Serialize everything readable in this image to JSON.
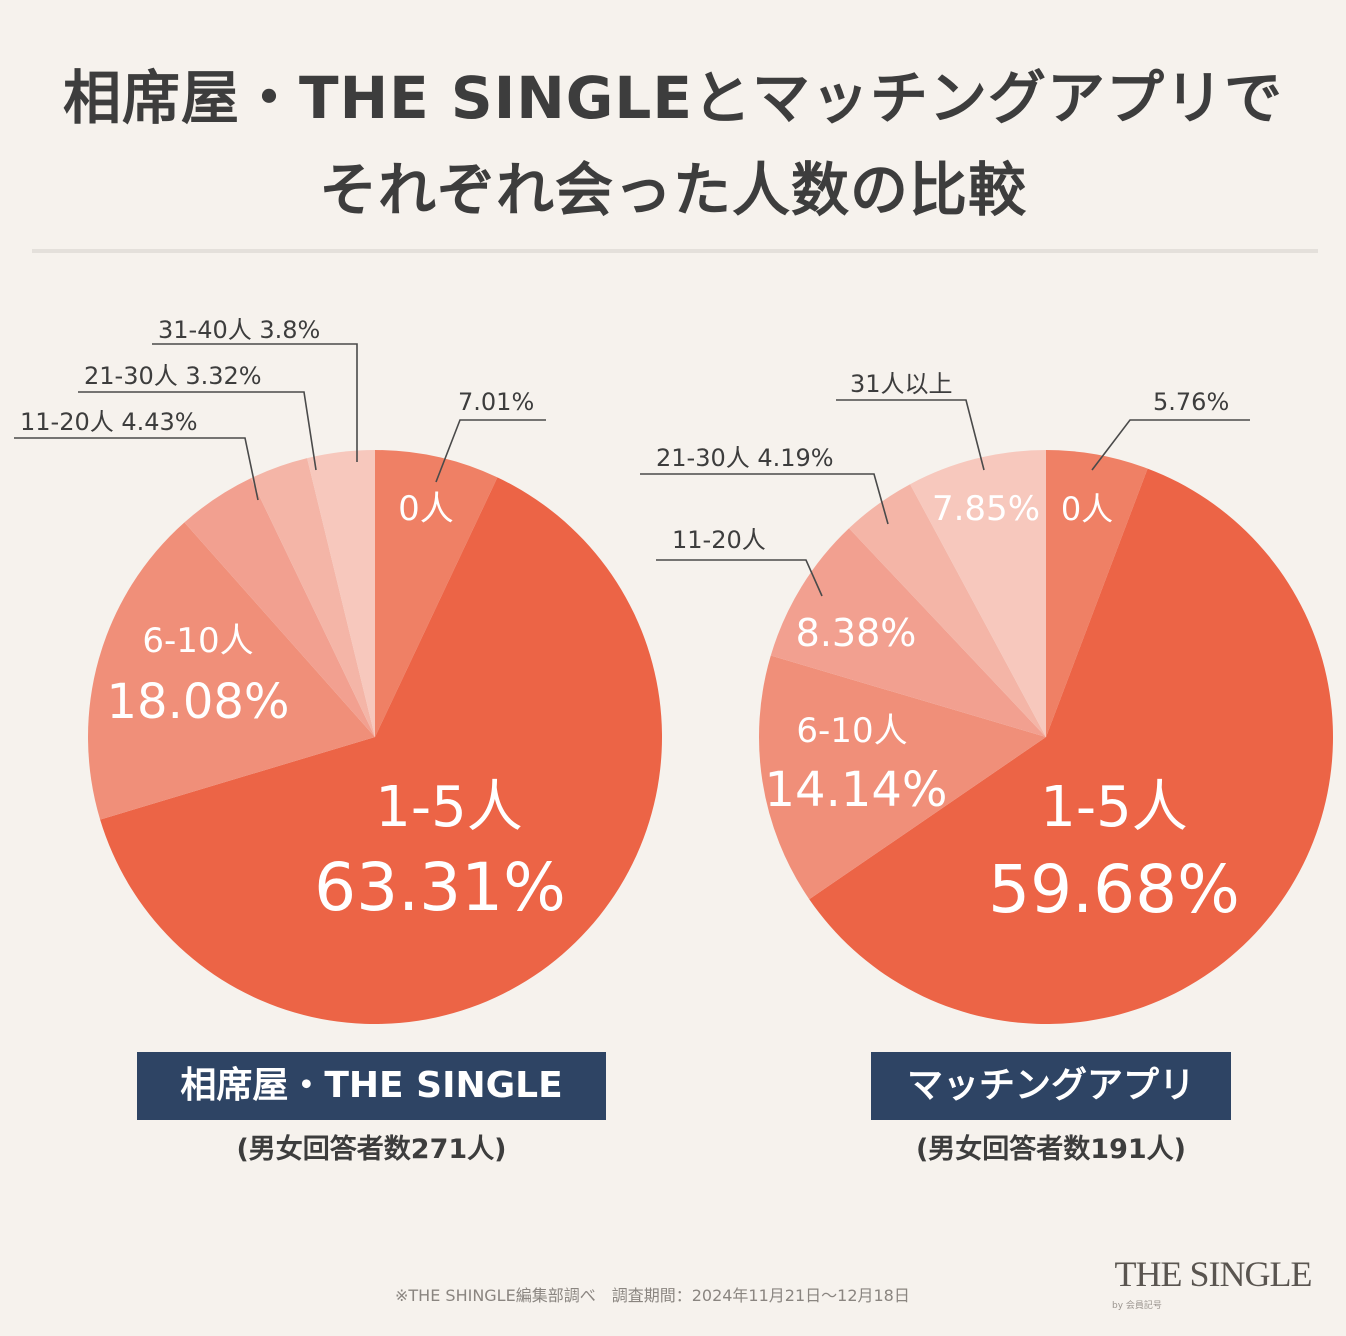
{
  "title": {
    "line1": "相席屋・THE SINGLEとマッチングアプリで",
    "line2": "それぞれ会った人数の比較"
  },
  "colors": {
    "background": "#f6f2ed",
    "chip": "#2e4464",
    "slice_main": "#ec6446",
    "slice_zero": "#ef8065",
    "slice_6_10": "#f08f79",
    "slice_11_20": "#f2a090",
    "slice_21_30": "#f4b5a7",
    "slice_31_plus": "#f7c8bd"
  },
  "chart_data": [
    {
      "type": "pie",
      "name": "相席屋・THE SINGLE",
      "respondents": "(男女回答者数271人)",
      "slices": [
        {
          "category": "0人",
          "value": 7.01,
          "label": "7.01%",
          "color": "#ef8065"
        },
        {
          "category": "1-5人",
          "value": 63.31,
          "label": "63.31%",
          "color": "#ec6446"
        },
        {
          "category": "6-10人",
          "value": 18.08,
          "label": "18.08%",
          "color": "#f08f79"
        },
        {
          "category": "11-20人",
          "value": 4.43,
          "label": "4.43%",
          "color": "#f2a090"
        },
        {
          "category": "21-30人",
          "value": 3.32,
          "label": "3.32%",
          "color": "#f4b5a7"
        },
        {
          "category": "31-40人",
          "value": 3.8,
          "label": "3.8%",
          "color": "#f7c8bd"
        }
      ]
    },
    {
      "type": "pie",
      "name": "マッチングアプリ",
      "respondents": "(男女回答者数191人)",
      "slices": [
        {
          "category": "0人",
          "value": 5.76,
          "label": "5.76%",
          "color": "#ef8065"
        },
        {
          "category": "1-5人",
          "value": 59.68,
          "label": "59.68%",
          "color": "#ec6446"
        },
        {
          "category": "6-10人",
          "value": 14.14,
          "label": "14.14%",
          "color": "#f08f79"
        },
        {
          "category": "11-20人",
          "value": 8.38,
          "label": "8.38%",
          "color": "#f2a090"
        },
        {
          "category": "21-30人",
          "value": 4.19,
          "label": "4.19%",
          "color": "#f4b5a7"
        },
        {
          "category": "31人以上",
          "value": 7.85,
          "label": "7.85%",
          "color": "#f7c8bd"
        }
      ]
    }
  ],
  "footer": {
    "note": "※THE SHINGLE編集部調べ　調査期間：2024年11月21日～12月18日",
    "brand": "THE SINGLE",
    "brand_sub": "by 会員記号"
  }
}
